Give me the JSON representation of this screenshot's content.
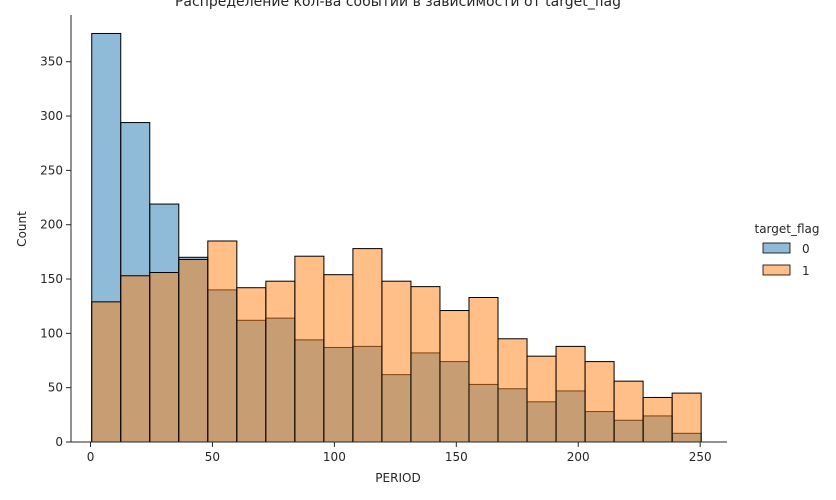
{
  "chart_data": {
    "type": "bar",
    "title": "Распределение кол-ва событий в зависимости от target_flag",
    "xlabel": "PERIOD",
    "ylabel": "Count",
    "xlim": [
      -8,
      261
    ],
    "ylim": [
      0,
      393
    ],
    "x_ticks": [
      0,
      50,
      100,
      150,
      200,
      250
    ],
    "y_ticks": [
      0,
      50,
      100,
      150,
      200,
      250,
      300,
      350
    ],
    "bin_edges": [
      0.5,
      12.4,
      24.3,
      36.2,
      48.1,
      60.0,
      71.9,
      83.8,
      95.7,
      107.6,
      119.5,
      131.4,
      143.3,
      155.2,
      167.1,
      179.0,
      190.9,
      202.8,
      214.7,
      226.6,
      238.5,
      250.4
    ],
    "legend": {
      "title": "target_flag",
      "placement": "right"
    },
    "series": [
      {
        "name": "0",
        "color": "#1f77b4",
        "values": [
          376,
          294,
          219,
          170,
          140,
          112,
          114,
          94,
          87,
          88,
          62,
          82,
          74,
          53,
          49,
          37,
          47,
          28,
          20,
          24,
          8
        ]
      },
      {
        "name": "1",
        "color": "#ff7f0e",
        "values": [
          129,
          153,
          156,
          168,
          185,
          142,
          148,
          171,
          154,
          178,
          148,
          143,
          121,
          133,
          95,
          79,
          88,
          74,
          56,
          41,
          45
        ]
      }
    ]
  }
}
